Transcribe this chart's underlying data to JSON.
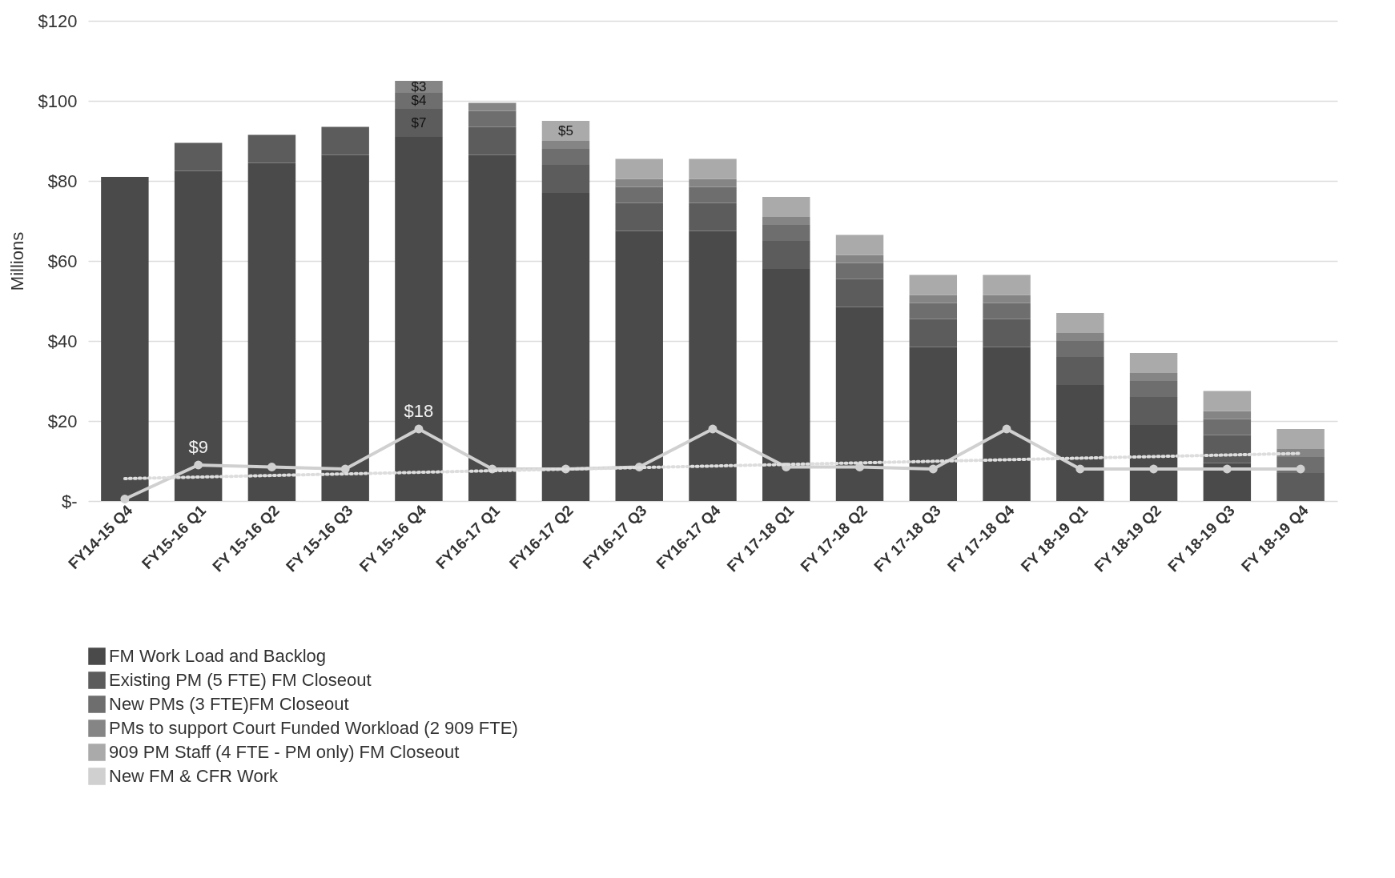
{
  "chart_data": {
    "type": "bar",
    "stacked": true,
    "ylabel": "Millions",
    "categories": [
      "FY14-15 Q4",
      "FY15-16 Q1",
      "FY 15-16 Q2",
      "FY 15-16 Q3",
      "FY 15-16 Q4",
      "FY16-17 Q1",
      "FY16-17 Q2",
      "FY16-17 Q3",
      "FY16-17 Q4",
      "FY 17-18 Q1",
      "FY 17-18 Q2",
      "FY 17-18 Q3",
      "FY 17-18 Q4",
      "FY 18-19 Q1",
      "FY 18-19 Q2",
      "FY 18-19 Q3",
      "FY 18-19 Q4"
    ],
    "series": [
      {
        "name": "FM Work Load and Backlog",
        "color": "#4a4a4a",
        "values": [
          81,
          82.5,
          84.5,
          86.5,
          91,
          86.5,
          77,
          67.5,
          67.5,
          58,
          48.5,
          38.5,
          38.5,
          29,
          19,
          9.5,
          0
        ]
      },
      {
        "name": "Existing PM (5 FTE) FM Closeout",
        "color": "#5c5c5c",
        "values": [
          null,
          7,
          7,
          7,
          7,
          7,
          7,
          7,
          7,
          7,
          7,
          7,
          7,
          7,
          7,
          7,
          7
        ],
        "value_labels": [
          null,
          null,
          null,
          null,
          "$7",
          null,
          null,
          null,
          null,
          null,
          null,
          null,
          null,
          null,
          null,
          null,
          null
        ]
      },
      {
        "name": "New PMs (3 FTE)FM Closeout",
        "color": "#6e6e6e",
        "values": [
          null,
          null,
          null,
          null,
          4,
          4,
          4,
          4,
          4,
          4,
          4,
          4,
          4,
          4,
          4,
          4,
          4
        ],
        "value_labels": [
          null,
          null,
          null,
          null,
          "$4",
          null,
          null,
          null,
          null,
          null,
          null,
          null,
          null,
          null,
          null,
          null,
          null
        ]
      },
      {
        "name": "PMs to support Court Funded Workload (2 909 FTE)",
        "color": "#858585",
        "values": [
          null,
          null,
          null,
          null,
          3,
          2,
          2,
          2,
          2,
          2,
          2,
          2,
          2,
          2,
          2,
          2,
          2
        ],
        "value_labels": [
          null,
          null,
          null,
          null,
          "$3",
          null,
          null,
          null,
          null,
          null,
          null,
          null,
          null,
          null,
          null,
          null,
          null
        ]
      },
      {
        "name": "909 PM Staff (4 FTE - PM only) FM Closeout",
        "color": "#aaaaaa",
        "values": [
          null,
          null,
          null,
          null,
          null,
          null,
          5,
          5,
          5,
          5,
          5,
          5,
          5,
          5,
          5,
          5,
          5
        ],
        "value_labels": [
          null,
          null,
          null,
          null,
          null,
          null,
          "$5",
          null,
          null,
          null,
          null,
          null,
          null,
          null,
          null,
          null,
          null
        ]
      },
      {
        "name": "New FM & CFR Work",
        "type": "line",
        "color": "#d0d0d0",
        "marker": "circle",
        "values": [
          0.5,
          9,
          8.5,
          8,
          18,
          8,
          8,
          8.5,
          18,
          8.5,
          8.5,
          8,
          18,
          8,
          8,
          8,
          8
        ],
        "value_labels": [
          null,
          "$9",
          null,
          null,
          "$18",
          null,
          null,
          null,
          null,
          null,
          null,
          null,
          null,
          null,
          null,
          null,
          null
        ]
      },
      {
        "type": "line",
        "color": "#dddddd",
        "line_style": "dotted",
        "x": [
          "FY14-15 Q4",
          "FY 18-19 Q4"
        ],
        "values": [
          5.6,
          11.9
        ]
      }
    ],
    "ylim": [
      0,
      120
    ],
    "yticks": [
      {
        "value": 0,
        "label": "$-"
      },
      {
        "value": 20,
        "label": "$20"
      },
      {
        "value": 40,
        "label": "$40"
      },
      {
        "value": 60,
        "label": "$60"
      },
      {
        "value": 80,
        "label": "$80"
      },
      {
        "value": 100,
        "label": "$100"
      },
      {
        "value": 120,
        "label": "$120"
      }
    ],
    "grid": "y",
    "legend": "bottom"
  }
}
